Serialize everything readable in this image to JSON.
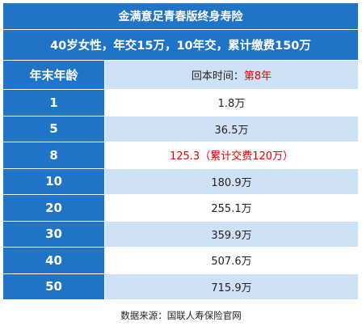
{
  "title": "金满意足青春版终身寿险",
  "subtitle": "40岁女性，年交15万，10年交，累计缴费150万",
  "header": {
    "col1": "年末年龄",
    "col2_prefix": "回本时间：",
    "col2_highlight": "第8年"
  },
  "rows": [
    {
      "age": "1",
      "value": "1.8万"
    },
    {
      "age": "5",
      "value": "36.5万"
    },
    {
      "age": "8",
      "value": "125.3（累计交费120万）"
    },
    {
      "age": "10",
      "value": "180.9万"
    },
    {
      "age": "20",
      "value": "255.1万"
    },
    {
      "age": "30",
      "value": "359.9万"
    },
    {
      "age": "40",
      "value": "507.6万"
    },
    {
      "age": "50",
      "value": "715.9万"
    }
  ],
  "source": "数据来源：国联人寿保险官网",
  "colors": {
    "header_blue": "#1f74c8",
    "light_blue": "#cfe1f5",
    "highlight_red": "#e60000"
  }
}
